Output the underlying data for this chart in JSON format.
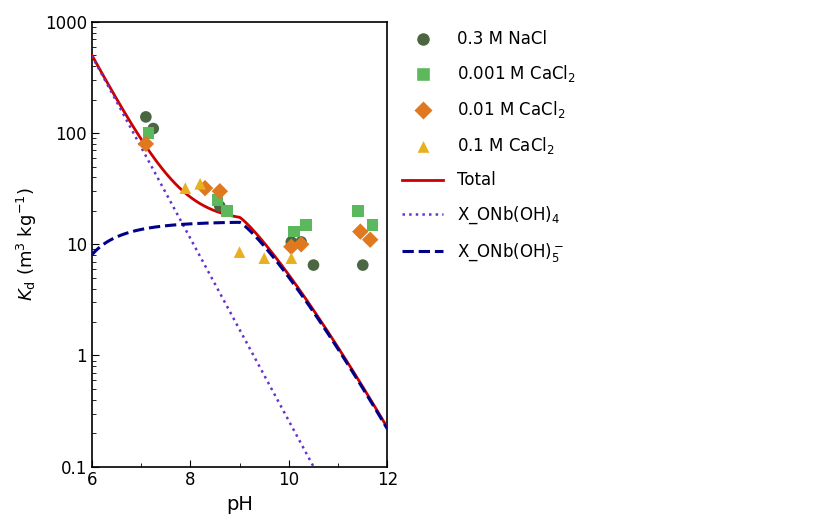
{
  "xlabel": "pH",
  "ylabel": "$K_{\\mathrm{d}}$ (m$^3$ kg$^{-1}$)",
  "xlim": [
    6,
    12
  ],
  "ylim": [
    0.1,
    1000
  ],
  "xticks": [
    6,
    8,
    10,
    12
  ],
  "scatter_nacl": {
    "x": [
      7.1,
      7.25,
      8.6,
      8.75,
      10.05,
      10.25,
      10.5,
      11.5
    ],
    "y": [
      140,
      110,
      22,
      20,
      10.5,
      10.5,
      6.5,
      6.5
    ],
    "color": "#4a6741",
    "marker": "o",
    "label": "0.3 M NaCl"
  },
  "scatter_cacl2_001": {
    "x": [
      7.15,
      8.55,
      8.75,
      10.1,
      10.35,
      11.4,
      11.7
    ],
    "y": [
      100,
      25,
      20,
      13.0,
      15.0,
      20.0,
      15.0
    ],
    "color": "#5cb85c",
    "marker": "s",
    "label": "0.001 M CaCl$_2$"
  },
  "scatter_cacl2_01": {
    "x": [
      7.1,
      8.3,
      8.6,
      10.05,
      10.25,
      11.45,
      11.65
    ],
    "y": [
      80,
      32,
      30,
      9.5,
      10.0,
      13.0,
      11.0
    ],
    "color": "#e07820",
    "marker": "D",
    "label": "0.01 M CaCl$_2$"
  },
  "scatter_cacl2_1": {
    "x": [
      7.9,
      8.2,
      9.0,
      9.5,
      10.05
    ],
    "y": [
      32,
      35,
      8.5,
      7.5,
      7.5
    ],
    "color": "#e8b020",
    "marker": "^",
    "label": "0.1 M CaCl$_2$"
  },
  "line_total_color": "#cc0000",
  "line_dotted_color": "#6633cc",
  "line_dashed_color": "#00008b",
  "figsize": [
    8.3,
    5.29
  ],
  "dpi": 100
}
